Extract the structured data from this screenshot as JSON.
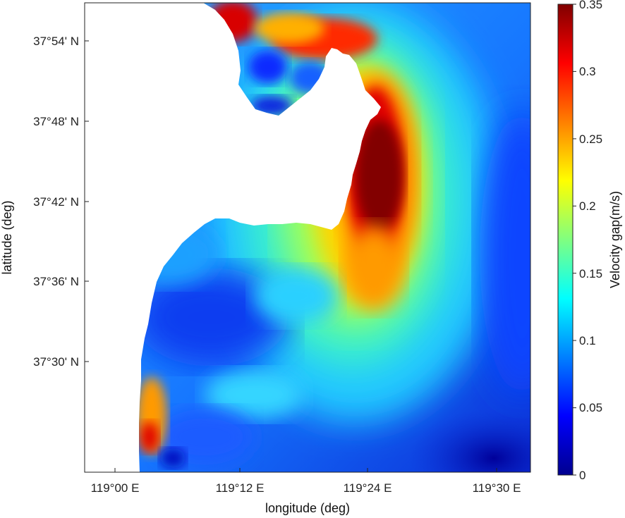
{
  "figure": {
    "xlabel": "longitude (deg)",
    "ylabel": "latitude (deg)",
    "x_ticks": [
      "119°00 E",
      "119°12 E",
      "119°24 E",
      "119°30 E"
    ],
    "y_ticks": [
      "37°54' N",
      "37°48' N",
      "37°42' N",
      "37°36' N",
      "37°30' N"
    ]
  },
  "colorbar": {
    "label": "Velocity gap(m/s)",
    "ticks": [
      "0.35",
      "0.3",
      "0.25",
      "0.2",
      "0.15",
      "0.1",
      "0.05",
      "0"
    ],
    "range": [
      0,
      0.35
    ],
    "colormap": "jet",
    "colors": [
      "#00008f",
      "#0000ff",
      "#00bfff",
      "#40ffbf",
      "#ffff00",
      "#ff8000",
      "#ff0000",
      "#800000"
    ]
  }
}
